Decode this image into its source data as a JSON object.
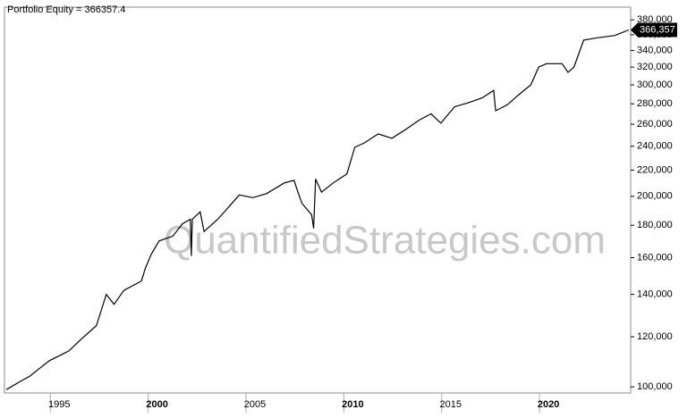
{
  "chart_data": {
    "type": "line",
    "title": "Portfolio Equity = 366357.4",
    "watermark": "QuantifiedStrategies.com",
    "log_scale": true,
    "color": "#000000",
    "x": [
      1992.3,
      1993.0,
      1993.5,
      1994.0,
      1994.5,
      1995.0,
      1995.5,
      1996.0,
      1996.9,
      1997.4,
      1997.8,
      1998.3,
      1999.2,
      1999.4,
      1999.7,
      2000.1,
      2000.8,
      2001.3,
      2001.7,
      2001.75,
      2001.8,
      2002.2,
      2002.4,
      2003.1,
      2003.5,
      2004.2,
      2004.9,
      2005.6,
      2006.5,
      2007.0,
      2007.2,
      2007.4,
      2007.9,
      2008.0,
      2008.1,
      2008.4,
      2009.0,
      2009.7,
      2010.1,
      2010.6,
      2011.3,
      2012.0,
      2012.7,
      2013.4,
      2014.0,
      2014.5,
      2015.2,
      2015.9,
      2016.6,
      2017.2,
      2017.3,
      2017.9,
      2018.4,
      2019.1,
      2019.5,
      2019.9,
      2020.7,
      2021.0,
      2021.3,
      2021.8,
      2022.5,
      2023.4,
      2024.1
    ],
    "values": [
      99000,
      102000,
      104000,
      107000,
      110000,
      112000,
      114000,
      118000,
      125000,
      140000,
      135000,
      142000,
      147000,
      154000,
      162000,
      170000,
      173000,
      181000,
      184000,
      161000,
      184000,
      189000,
      176000,
      184000,
      190000,
      201000,
      199000,
      202000,
      210000,
      212000,
      203000,
      195000,
      187000,
      178000,
      213000,
      203000,
      210000,
      217000,
      239000,
      243000,
      251000,
      247000,
      255000,
      264000,
      270000,
      261000,
      277000,
      281000,
      286000,
      294000,
      273000,
      279000,
      288000,
      300000,
      320000,
      324000,
      324000,
      314000,
      320000,
      353000,
      356000,
      359000,
      366357.4
    ],
    "last_value_label": {
      "value": 366357.4,
      "label": "366,357"
    },
    "xlim": [
      1992.2,
      2024.2
    ],
    "xticks": [
      1995,
      2000,
      2005,
      2010,
      2015,
      2020
    ],
    "ylim": [
      97800,
      398000
    ],
    "yticks": [
      {
        "value": 100000,
        "label": "100,000"
      },
      {
        "value": 120000,
        "label": "120,000"
      },
      {
        "value": 140000,
        "label": "140,000"
      },
      {
        "value": 160000,
        "label": "160,000"
      },
      {
        "value": 180000,
        "label": "180,000"
      },
      {
        "value": 200000,
        "label": "200,000"
      },
      {
        "value": 220000,
        "label": "220,000"
      },
      {
        "value": 240000,
        "label": "240,000"
      },
      {
        "value": 260000,
        "label": "260,000"
      },
      {
        "value": 280000,
        "label": "280,000"
      },
      {
        "value": 300000,
        "label": "300,000"
      },
      {
        "value": 320000,
        "label": "320,000"
      },
      {
        "value": 340000,
        "label": "340,000"
      },
      {
        "value": 360000,
        "label": "360,000"
      },
      {
        "value": 380000,
        "label": "380,000"
      }
    ]
  }
}
